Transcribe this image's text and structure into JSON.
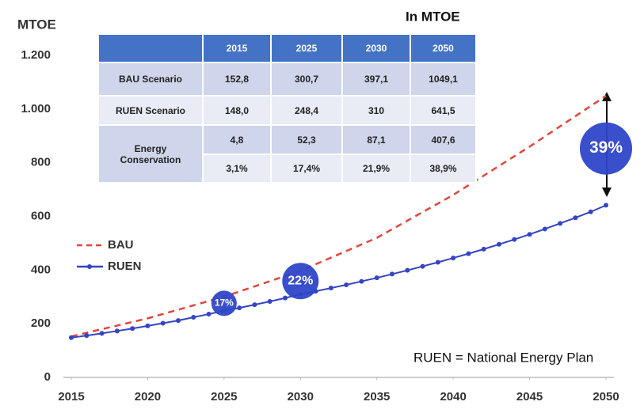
{
  "chart_data": {
    "type": "line",
    "y_label": "MTOE",
    "caption": "In MTOE",
    "note": "RUEN = National Energy Plan",
    "xlim": [
      2015,
      2050
    ],
    "xticks": [
      2015,
      2020,
      2025,
      2030,
      2035,
      2040,
      2045,
      2050
    ],
    "ylim": [
      0,
      1200
    ],
    "yticks": [
      0,
      200,
      400,
      600,
      800,
      {
        "value": 1000,
        "label": "1.000"
      },
      {
        "value": 1200,
        "label": "1.200"
      }
    ],
    "grid": false,
    "legend": "left",
    "series": [
      {
        "name": "BAU",
        "color": "#e0463c",
        "dashed": true,
        "x": [
          2015,
          2020,
          2025,
          2030,
          2035,
          2040,
          2045,
          2050
        ],
        "values": [
          152.8,
          220,
          300.7,
          397.1,
          520,
          680,
          860,
          1049.1
        ]
      },
      {
        "name": "RUEN",
        "color": "#3444c4",
        "markers": true,
        "x": [
          2015,
          2016,
          2017,
          2018,
          2019,
          2020,
          2021,
          2022,
          2023,
          2024,
          2025,
          2026,
          2027,
          2028,
          2029,
          2030,
          2031,
          2032,
          2033,
          2034,
          2035,
          2036,
          2037,
          2038,
          2039,
          2040,
          2041,
          2042,
          2043,
          2044,
          2045,
          2046,
          2047,
          2048,
          2049,
          2050
        ],
        "values": [
          148,
          156,
          164,
          173,
          182,
          192,
          202,
          212,
          224,
          236,
          248,
          259,
          271,
          283,
          296,
          310,
          321,
          333,
          345,
          358,
          371,
          385,
          399,
          414,
          429,
          445,
          461,
          478,
          496,
          514,
          533,
          553,
          574,
          595,
          617,
          641.5
        ]
      }
    ],
    "annotations": [
      {
        "text": "17%",
        "x": 2025,
        "y": 276,
        "size": "small"
      },
      {
        "text": "22%",
        "x": 2030,
        "y": 359,
        "size": "medium"
      },
      {
        "text": "39%",
        "x": 2050,
        "y": 853,
        "size": "large"
      }
    ]
  },
  "table": {
    "columns": [
      "2015",
      "2025",
      "2030",
      "2050"
    ],
    "rows": [
      {
        "label": "BAU Scenario",
        "cells": [
          "152,8",
          "300,7",
          "397,1",
          "1049,1"
        ]
      },
      {
        "label": "RUEN Scenario",
        "cells": [
          "148,0",
          "248,4",
          "310",
          "641,5"
        ]
      }
    ],
    "conservation": {
      "label": "Energy Conservation",
      "rows": [
        [
          "4,8",
          "52,3",
          "87,1",
          "407,6"
        ],
        [
          "3,1%",
          "17,4%",
          "21,9%",
          "38,9%"
        ]
      ]
    }
  }
}
